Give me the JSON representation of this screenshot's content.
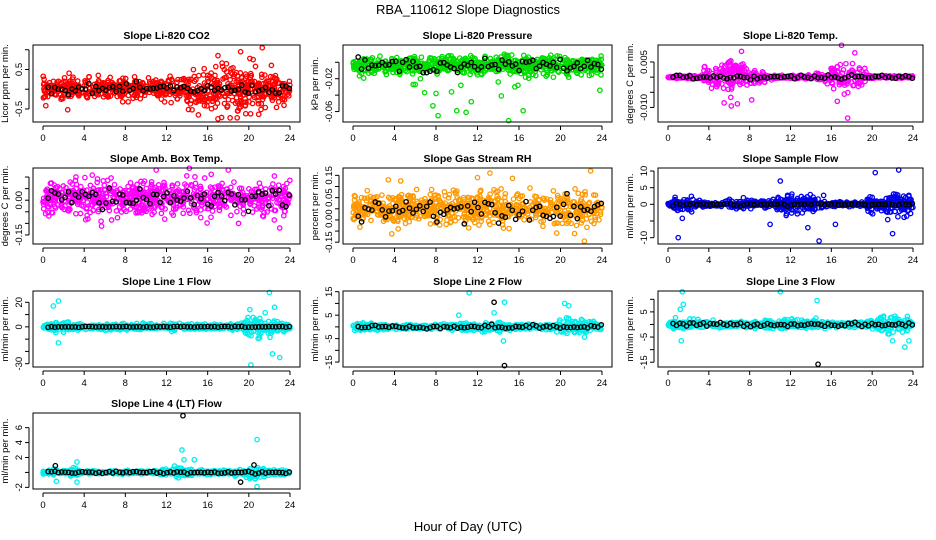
{
  "title": "RBA_110612  Slope Diagnostics",
  "xlabel": "Hour of Day (UTC)",
  "chart_data": [
    {
      "type": "scatter",
      "title": "Slope Li-820 CO2",
      "ylabel": "Licor ppm per min.",
      "xlim": [
        0,
        24
      ],
      "xticks": [
        0,
        4,
        8,
        12,
        16,
        20,
        24
      ],
      "ylim": [
        -0.83,
        1.12
      ],
      "yticks": [
        1.0,
        0.5,
        0.0,
        -0.5
      ],
      "ytick_labels": [
        "",
        "0.5",
        "",
        "-0.5"
      ],
      "color": "#ff0000",
      "center": 0.0,
      "spread_by_hour": [
        0.2,
        0.2,
        0.22,
        0.22,
        0.22,
        0.22,
        0.22,
        0.22,
        0.22,
        0.22,
        0.22,
        0.22,
        0.22,
        0.22,
        0.3,
        0.4,
        0.45,
        0.5,
        0.5,
        0.5,
        0.45,
        0.4,
        0.35,
        0.3,
        0.3
      ],
      "black_spread": 0.12,
      "outliers": [
        [
          17,
          0.85
        ],
        [
          19.2,
          0.95
        ],
        [
          21.3,
          1.05
        ],
        [
          17,
          -0.75
        ],
        [
          2.4,
          -0.52
        ],
        [
          15.1,
          -0.65
        ],
        [
          19.7,
          -0.62
        ],
        [
          18.9,
          -0.55
        ],
        [
          20.1,
          0.78
        ]
      ]
    },
    {
      "type": "scatter",
      "title": "Slope Li-820 Pressure",
      "ylabel": "kPa per min.",
      "xlim": [
        0,
        24
      ],
      "xticks": [
        0,
        4,
        8,
        12,
        16,
        20,
        24
      ],
      "ylim": [
        -0.0727,
        0.021
      ],
      "yticks": [
        0,
        -0.02,
        -0.04,
        -0.06
      ],
      "ytick_labels": [
        "",
        "-0.02",
        "",
        "-0.06"
      ],
      "color": "#00dd00",
      "center": -0.004,
      "spread_by_hour": [
        0.008,
        0.009,
        0.009,
        0.009,
        0.009,
        0.009,
        0.009,
        0.009,
        0.009,
        0.009,
        0.009,
        0.009,
        0.009,
        0.009,
        0.009,
        0.009,
        0.009,
        0.009,
        0.009,
        0.009,
        0.009,
        0.009,
        0.009,
        0.009,
        0.009
      ],
      "black_spread": 0.008,
      "outliers": [
        [
          5.8,
          -0.027
        ],
        [
          6.0,
          -0.027
        ],
        [
          6.5,
          -0.02
        ],
        [
          6.9,
          -0.037
        ],
        [
          7.7,
          -0.053
        ],
        [
          8.0,
          -0.038
        ],
        [
          8.2,
          -0.065
        ],
        [
          9.5,
          -0.036
        ],
        [
          10,
          -0.059
        ],
        [
          10.4,
          -0.028
        ],
        [
          10.9,
          -0.061
        ],
        [
          11.4,
          -0.048
        ],
        [
          14,
          -0.024
        ],
        [
          14.3,
          -0.041
        ],
        [
          15,
          -0.071
        ],
        [
          15.6,
          -0.03
        ],
        [
          15.9,
          -0.028
        ],
        [
          16.4,
          -0.059
        ],
        [
          23.8,
          -0.034
        ]
      ]
    },
    {
      "type": "scatter",
      "title": "Slope Li-820 Temp.",
      "ylabel": "degrees C per min.",
      "xlim": [
        0,
        24
      ],
      "xticks": [
        0,
        4,
        8,
        12,
        16,
        20,
        24
      ],
      "ylim": [
        -0.0148,
        0.0106
      ],
      "yticks": [
        0.005,
        0,
        -0.005,
        -0.01
      ],
      "ytick_labels": [
        "0.005",
        "",
        "",
        "-0.010"
      ],
      "color": "#ff00ff",
      "center": 0.0,
      "spread_by_hour": [
        0.0002,
        0.0003,
        0.0004,
        0.0006,
        0.0035,
        0.0045,
        0.0045,
        0.004,
        0.003,
        0.0015,
        0.0005,
        0.0004,
        0.0004,
        0.0004,
        0.0004,
        0.0008,
        0.003,
        0.004,
        0.004,
        0.003,
        0.0004,
        0.0003,
        0.0003,
        0.0003,
        0.0003
      ],
      "black_spread": 0.0007,
      "outliers": [
        [
          5.5,
          -0.0085
        ],
        [
          6.2,
          -0.0095
        ],
        [
          6.8,
          -0.0088
        ],
        [
          8.2,
          -0.0075
        ],
        [
          17,
          0.0105
        ],
        [
          17.6,
          -0.0135
        ],
        [
          7.2,
          0.0085
        ],
        [
          18.3,
          0.008
        ]
      ]
    },
    {
      "type": "scatter",
      "title": "Slope Amb. Box Temp.",
      "ylabel": "degrees C per min.",
      "xlim": [
        0,
        24
      ],
      "xticks": [
        0,
        4,
        8,
        12,
        16,
        20,
        24
      ],
      "ylim": [
        -0.189,
        0.139
      ],
      "yticks": [
        0.1,
        0.05,
        0,
        -0.05,
        -0.1,
        -0.15
      ],
      "ytick_labels": [
        "",
        "",
        "0.00",
        "",
        "",
        "-0.15"
      ],
      "color": "#ff00ff",
      "center": 0.01,
      "spread_by_hour": [
        0.06,
        0.06,
        0.06,
        0.06,
        0.06,
        0.06,
        0.06,
        0.06,
        0.06,
        0.06,
        0.06,
        0.06,
        0.06,
        0.06,
        0.06,
        0.06,
        0.06,
        0.06,
        0.06,
        0.06,
        0.06,
        0.06,
        0.06,
        0.06,
        0.06
      ],
      "black_spread": 0.05,
      "outliers": [
        [
          11,
          0.13
        ],
        [
          18,
          0.13
        ],
        [
          3.2,
          0.1
        ],
        [
          23,
          -0.12
        ],
        [
          19,
          -0.1
        ]
      ]
    },
    {
      "type": "scatter",
      "title": "Slope Gas Stream RH",
      "ylabel": "percent per min.",
      "xlim": [
        0,
        24
      ],
      "xticks": [
        0,
        4,
        8,
        12,
        16,
        20,
        24
      ],
      "ylim": [
        -0.158,
        0.183
      ],
      "yticks": [
        0.15,
        0.1,
        0.05,
        0,
        -0.05,
        -0.1,
        -0.15
      ],
      "ytick_labels": [
        "0.15",
        "",
        "0.05",
        "0.00",
        "",
        "",
        "-0.15"
      ],
      "color": "#ff9900",
      "center": 0.0,
      "spread_by_hour": [
        0.06,
        0.06,
        0.06,
        0.06,
        0.06,
        0.06,
        0.06,
        0.06,
        0.06,
        0.06,
        0.06,
        0.06,
        0.06,
        0.06,
        0.06,
        0.06,
        0.06,
        0.06,
        0.06,
        0.06,
        0.06,
        0.06,
        0.06,
        0.06,
        0.06
      ],
      "black_spread": 0.05,
      "outliers": [
        [
          22.9,
          0.17
        ],
        [
          22.3,
          -0.145
        ],
        [
          13.2,
          0.16
        ],
        [
          12,
          0.14
        ],
        [
          3.4,
          0.13
        ],
        [
          4.6,
          0.125
        ]
      ]
    },
    {
      "type": "scatter",
      "title": "Slope Sample Flow",
      "ylabel": "ml/min per min.",
      "xlim": [
        0,
        24
      ],
      "xticks": [
        0,
        4,
        8,
        12,
        16,
        20,
        24
      ],
      "ylim": [
        -11.9,
        10.9
      ],
      "yticks": [
        10,
        5,
        0,
        -5,
        -10
      ],
      "ytick_labels": [
        "10",
        "5",
        "0",
        "",
        "-10"
      ],
      "color": "#0000ee",
      "center": 0.0,
      "spread_by_hour": [
        0.5,
        1.5,
        2,
        1,
        0.7,
        0.7,
        1.2,
        1,
        0.8,
        0.8,
        1,
        1.5,
        2,
        2,
        2,
        1.5,
        0.6,
        0.5,
        0.5,
        0.5,
        2,
        2.5,
        3,
        3,
        2
      ],
      "black_spread": 0.4,
      "outliers": [
        [
          1,
          -10
        ],
        [
          20.3,
          9.5
        ],
        [
          22.6,
          10.3
        ],
        [
          14.8,
          -11
        ],
        [
          22,
          -8.8
        ],
        [
          11,
          7
        ],
        [
          10,
          -6
        ],
        [
          1.4,
          -4.2
        ],
        [
          13.7,
          -7
        ],
        [
          16.4,
          -6
        ]
      ]
    },
    {
      "type": "scatter",
      "title": "Slope Line 1 Flow",
      "ylabel": "ml/min per min.",
      "xlim": [
        0,
        24
      ],
      "xticks": [
        0,
        4,
        8,
        12,
        16,
        20,
        24
      ],
      "ylim": [
        -32.7,
        29.2
      ],
      "yticks": [
        20,
        10,
        0,
        -10,
        -20,
        -30
      ],
      "ytick_labels": [
        "20",
        "",
        "0",
        "",
        "",
        "-30"
      ],
      "color": "#00eeee",
      "center": 0.0,
      "spread_by_hour": [
        1.5,
        3,
        3,
        2,
        1.5,
        1.5,
        2,
        2,
        2,
        2,
        2,
        2,
        2.5,
        2.5,
        2,
        2,
        1.5,
        1.5,
        1.5,
        2,
        6,
        7,
        7,
        4,
        2
      ],
      "black_spread": 0.4,
      "outliers": [
        [
          1.5,
          21
        ],
        [
          1,
          17
        ],
        [
          22,
          28
        ],
        [
          20.2,
          -31
        ],
        [
          22.3,
          -22
        ],
        [
          23,
          -25
        ],
        [
          1.5,
          -13
        ],
        [
          20.1,
          14
        ],
        [
          22.5,
          16
        ]
      ]
    },
    {
      "type": "scatter",
      "title": "Slope Line 2 Flow",
      "ylabel": "ml/min per min.",
      "xlim": [
        0,
        24
      ],
      "xticks": [
        0,
        4,
        8,
        12,
        16,
        20,
        24
      ],
      "ylim": [
        -17.1,
        15.3
      ],
      "yticks": [
        15,
        10,
        5,
        0,
        -5,
        -10,
        -15
      ],
      "ytick_labels": [
        "15",
        "",
        "5",
        "",
        "-5",
        "",
        "-15"
      ],
      "color": "#00eeee",
      "center": 0.0,
      "spread_by_hour": [
        1,
        1.5,
        1.5,
        1,
        0.8,
        0.8,
        0.8,
        0.8,
        0.8,
        0.8,
        1.2,
        1.5,
        1.5,
        1.5,
        1.5,
        1,
        0.8,
        0.8,
        0.8,
        0.8,
        2,
        3,
        2.5,
        1.5,
        1
      ],
      "black_spread": 0.8,
      "outliers": [
        [
          11.2,
          14.5
        ],
        [
          14.6,
          10.5
        ],
        [
          20.4,
          10
        ],
        [
          20.8,
          9
        ],
        [
          14.5,
          -6
        ],
        [
          13.6,
          6
        ],
        [
          10.2,
          5
        ]
      ],
      "black_outliers": [
        [
          13.6,
          10.5
        ],
        [
          14.6,
          -16.5
        ]
      ]
    },
    {
      "type": "scatter",
      "title": "Slope Line 3 Flow",
      "ylabel": "ml/min per min.",
      "xlim": [
        0,
        24
      ],
      "xticks": [
        0,
        4,
        8,
        12,
        16,
        20,
        24
      ],
      "ylim": [
        -16.9,
        13.3
      ],
      "yticks": [
        10,
        5,
        0,
        -5,
        -10,
        -15
      ],
      "ytick_labels": [
        "",
        "5",
        "",
        "-5",
        "",
        "-15"
      ],
      "color": "#00eeee",
      "center": 0.0,
      "spread_by_hour": [
        0.8,
        1.5,
        1.5,
        1,
        0.8,
        0.8,
        0.8,
        0.8,
        0.8,
        0.8,
        1.2,
        1.5,
        1.5,
        1.5,
        1.5,
        1,
        0.8,
        0.8,
        0.8,
        0.8,
        1.5,
        3,
        3,
        3,
        1
      ],
      "black_spread": 0.8,
      "outliers": [
        [
          1.4,
          13
        ],
        [
          11,
          13
        ],
        [
          14.6,
          9.5
        ],
        [
          1.5,
          8
        ],
        [
          23.2,
          -9
        ],
        [
          1.3,
          -6.5
        ],
        [
          1.2,
          6
        ],
        [
          22,
          -6.5
        ],
        [
          23.6,
          -6.5
        ]
      ],
      "black_outliers": [
        [
          14.7,
          -15.8
        ]
      ]
    },
    {
      "type": "scatter",
      "title": "Slope Line 4 (LT) Flow",
      "ylabel": "ml/min per min.",
      "xlim": [
        0,
        24
      ],
      "xticks": [
        0,
        4,
        8,
        12,
        16,
        20,
        24
      ],
      "ylim": [
        -2.22,
        7.96
      ],
      "yticks": [
        6,
        4,
        2,
        0,
        -2
      ],
      "ytick_labels": [
        "6",
        "4",
        "2",
        "",
        "-2"
      ],
      "color": "#00eeee",
      "center": 0.0,
      "spread_by_hour": [
        0.15,
        0.3,
        0.2,
        0.4,
        0.2,
        0.15,
        0.15,
        0.15,
        0.15,
        0.15,
        0.15,
        0.2,
        0.3,
        0.6,
        0.4,
        0.2,
        0.2,
        0.2,
        0.2,
        0.3,
        0.6,
        0.6,
        0.4,
        0.3,
        0.2
      ],
      "black_spread": 0.15,
      "outliers": [
        [
          20.8,
          4.4
        ],
        [
          13.5,
          3
        ],
        [
          13.7,
          1.7
        ],
        [
          14.7,
          1.7
        ],
        [
          3.3,
          1.4
        ],
        [
          1.3,
          -1.2
        ],
        [
          3.3,
          -1.3
        ],
        [
          20.8,
          -1.9
        ]
      ],
      "black_outliers": [
        [
          13.6,
          7.6
        ],
        [
          1.2,
          0.9
        ],
        [
          20.5,
          1.0
        ],
        [
          19.2,
          -1.3
        ]
      ]
    }
  ]
}
